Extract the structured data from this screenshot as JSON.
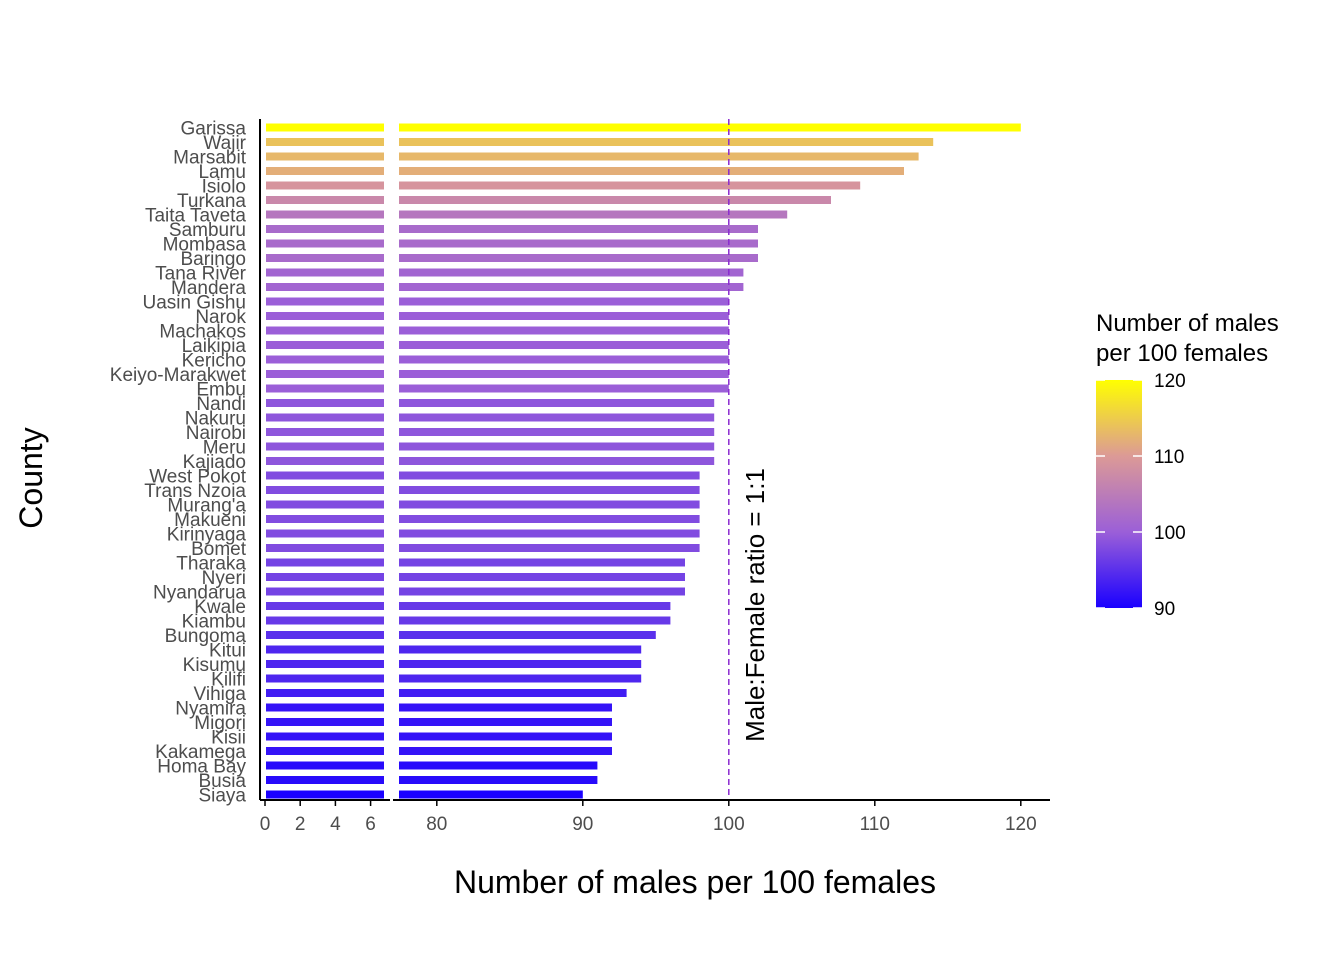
{
  "chart_data": {
    "type": "bar",
    "orientation": "horizontal",
    "xlabel": "Number of males per 100 females",
    "ylabel": "County",
    "categories": [
      "Garissa",
      "Wajir",
      "Marsabit",
      "Lamu",
      "Isiolo",
      "Turkana",
      "Taita Taveta",
      "Samburu",
      "Mombasa",
      "Baringo",
      "Tana River",
      "Mandera",
      "Uasin Gishu",
      "Narok",
      "Machakos",
      "Laikipia",
      "Kericho",
      "Keiyo-Marakwet",
      "Embu",
      "Nandi",
      "Nakuru",
      "Nairobi",
      "Meru",
      "Kajiado",
      "West Pokot",
      "Trans Nzoia",
      "Murang'a",
      "Makueni",
      "Kirinyaga",
      "Bomet",
      "Tharaka",
      "Nyeri",
      "Nyandarua",
      "Kwale",
      "Kiambu",
      "Bungoma",
      "Kitui",
      "Kisumu",
      "Kilifi",
      "Vihiga",
      "Nyamira",
      "Migori",
      "Kisii",
      "Kakamega",
      "Homa Bay",
      "Busia",
      "Siaya"
    ],
    "values": [
      120,
      114,
      113,
      112,
      109,
      107,
      104,
      102,
      102,
      102,
      101,
      101,
      100,
      100,
      100,
      100,
      100,
      100,
      100,
      99,
      99,
      99,
      99,
      99,
      98,
      98,
      98,
      98,
      98,
      98,
      97,
      97,
      97,
      96,
      96,
      95,
      94,
      94,
      94,
      93,
      92,
      92,
      92,
      92,
      91,
      91,
      90
    ],
    "axis_break": {
      "left_panel": {
        "xlim": [
          0,
          7.5
        ],
        "ticks": [
          0,
          2,
          4,
          6
        ]
      },
      "right_panel": {
        "xlim": [
          77,
          122
        ],
        "ticks": [
          80,
          90,
          100,
          110,
          120
        ]
      }
    },
    "reference_line": {
      "x": 100,
      "style": "dashed",
      "color": "#8B2BD0",
      "label": "Male:Female ratio = 1:1"
    },
    "color_scale": {
      "title_lines": [
        "Number of males",
        "per 100 females"
      ],
      "min": 90,
      "max": 120,
      "ticks": [
        90,
        100,
        110,
        120
      ],
      "colors": {
        "90": "#1a00ff",
        "100": "#9b5fd8",
        "110": "#dc9a96",
        "120": "#ffff00"
      }
    },
    "grid": false,
    "legend_position": "right"
  }
}
